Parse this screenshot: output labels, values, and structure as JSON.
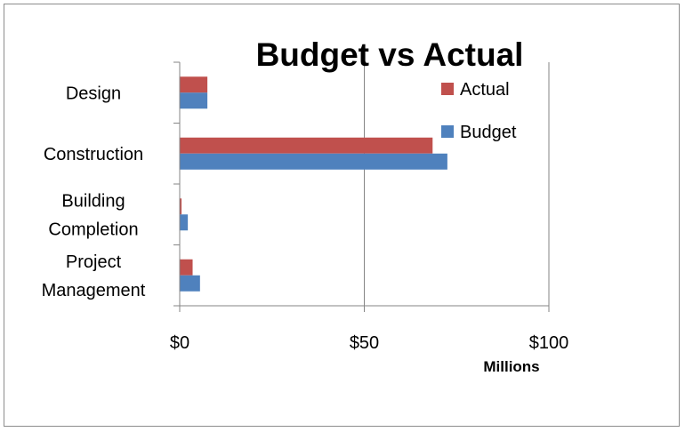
{
  "chart_data": {
    "type": "bar",
    "orientation": "horizontal",
    "title": "Budget vs Actual",
    "xlabel": "Millions",
    "ylabel": "",
    "categories": [
      "Design",
      "Construction",
      "Building Completion",
      "Project Management"
    ],
    "category_lines": [
      [
        "Design"
      ],
      [
        "Construction"
      ],
      [
        "Building",
        "Completion"
      ],
      [
        "Project",
        "Management"
      ]
    ],
    "series": [
      {
        "name": "Actual",
        "values": [
          7.5,
          68.5,
          0.5,
          3.5
        ],
        "color": "#c0504d"
      },
      {
        "name": "Budget",
        "values": [
          7.5,
          72.5,
          2.2,
          5.5
        ],
        "color": "#4f81bd"
      }
    ],
    "xlim": [
      0,
      100
    ],
    "xticks": [
      0,
      50,
      100
    ],
    "xtick_labels": [
      "$0",
      "$50",
      "$100"
    ],
    "grid": "vertical major gridlines",
    "legend_position": "top-right"
  }
}
